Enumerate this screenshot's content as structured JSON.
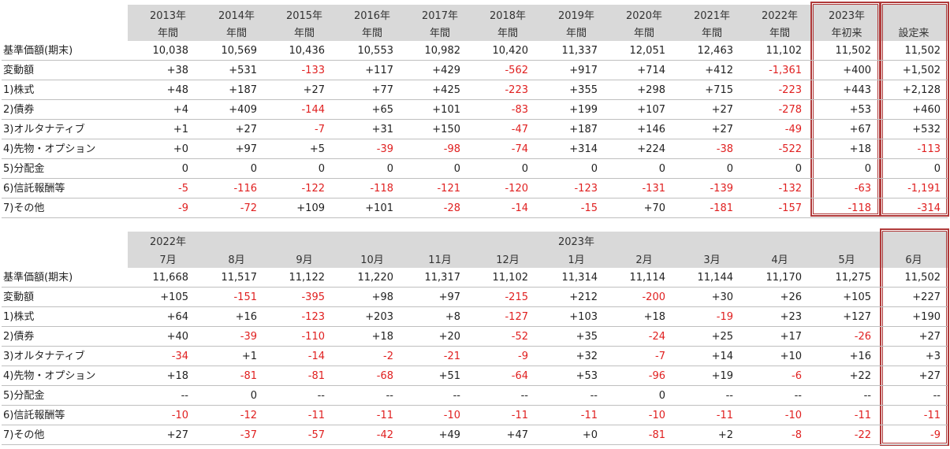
{
  "row_labels": [
    "基準価額(期末)",
    "変動額",
    "1)株式",
    "2)債券",
    "3)オルタナティブ",
    "4)先物・オプション",
    "5)分配金",
    "6)信託報酬等",
    "7)その他"
  ],
  "table1": {
    "headers": [
      [
        "2013年",
        "年間"
      ],
      [
        "2014年",
        "年間"
      ],
      [
        "2015年",
        "年間"
      ],
      [
        "2016年",
        "年間"
      ],
      [
        "2017年",
        "年間"
      ],
      [
        "2018年",
        "年間"
      ],
      [
        "2019年",
        "年間"
      ],
      [
        "2020年",
        "年間"
      ],
      [
        "2021年",
        "年間"
      ],
      [
        "2022年",
        "年間"
      ],
      [
        "2023年",
        "年初来"
      ],
      [
        "",
        "設定来"
      ]
    ],
    "rows": [
      [
        "10,038",
        "10,569",
        "10,436",
        "10,553",
        "10,982",
        "10,420",
        "11,337",
        "12,051",
        "12,463",
        "11,102",
        "11,502",
        "11,502"
      ],
      [
        "+38",
        "+531",
        "-133",
        "+117",
        "+429",
        "-562",
        "+917",
        "+714",
        "+412",
        "-1,361",
        "+400",
        "+1,502"
      ],
      [
        "+48",
        "+187",
        "+27",
        "+77",
        "+425",
        "-223",
        "+355",
        "+298",
        "+715",
        "-223",
        "+443",
        "+2,128"
      ],
      [
        "+4",
        "+409",
        "-144",
        "+65",
        "+101",
        "-83",
        "+199",
        "+107",
        "+27",
        "-278",
        "+53",
        "+460"
      ],
      [
        "+1",
        "+27",
        "-7",
        "+31",
        "+150",
        "-47",
        "+187",
        "+146",
        "+27",
        "-49",
        "+67",
        "+532"
      ],
      [
        "+0",
        "+97",
        "+5",
        "-39",
        "-98",
        "-74",
        "+314",
        "+224",
        "-38",
        "-522",
        "+18",
        "-113"
      ],
      [
        "0",
        "0",
        "0",
        "0",
        "0",
        "0",
        "0",
        "0",
        "0",
        "0",
        "0",
        "0"
      ],
      [
        "-5",
        "-116",
        "-122",
        "-118",
        "-121",
        "-120",
        "-123",
        "-131",
        "-139",
        "-132",
        "-63",
        "-1,191"
      ],
      [
        "-9",
        "-72",
        "+109",
        "+101",
        "-28",
        "-14",
        "-15",
        "+70",
        "-181",
        "-157",
        "-118",
        "-314"
      ]
    ]
  },
  "table2": {
    "year_labels": [
      {
        "text": "2022年",
        "col": 0
      },
      {
        "text": "2023年",
        "col": 6
      }
    ],
    "months": [
      "7月",
      "8月",
      "9月",
      "10月",
      "11月",
      "12月",
      "1月",
      "2月",
      "3月",
      "4月",
      "5月",
      "6月"
    ],
    "rows": [
      [
        "11,668",
        "11,517",
        "11,122",
        "11,220",
        "11,317",
        "11,102",
        "11,314",
        "11,114",
        "11,144",
        "11,170",
        "11,275",
        "11,502"
      ],
      [
        "+105",
        "-151",
        "-395",
        "+98",
        "+97",
        "-215",
        "+212",
        "-200",
        "+30",
        "+26",
        "+105",
        "+227"
      ],
      [
        "+64",
        "+16",
        "-123",
        "+203",
        "+8",
        "-127",
        "+103",
        "+18",
        "-19",
        "+23",
        "+127",
        "+190"
      ],
      [
        "+40",
        "-39",
        "-110",
        "+18",
        "+20",
        "-52",
        "+35",
        "-24",
        "+25",
        "+17",
        "-26",
        "+27"
      ],
      [
        "-34",
        "+1",
        "-14",
        "-2",
        "-21",
        "-9",
        "+32",
        "-7",
        "+14",
        "+10",
        "+16",
        "+3"
      ],
      [
        "+18",
        "-81",
        "-81",
        "-68",
        "+51",
        "-64",
        "+53",
        "-96",
        "+19",
        "-6",
        "+22",
        "+27"
      ],
      [
        "--",
        "0",
        "--",
        "--",
        "--",
        "--",
        "--",
        "0",
        "--",
        "--",
        "--",
        "--"
      ],
      [
        "-10",
        "-12",
        "-11",
        "-11",
        "-10",
        "-11",
        "-11",
        "-10",
        "-11",
        "-10",
        "-11",
        "-11"
      ],
      [
        "+27",
        "-37",
        "-57",
        "-42",
        "+49",
        "+47",
        "+0",
        "-81",
        "+2",
        "-8",
        "-22",
        "-9"
      ]
    ]
  },
  "colors": {
    "negative": "#e02020",
    "header_bg": "#d9d9d9",
    "highlight_border": "#b03a3a"
  }
}
